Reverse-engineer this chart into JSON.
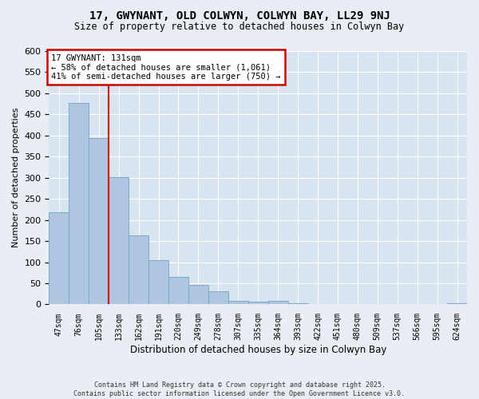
{
  "title_line1": "17, GWYNANT, OLD COLWYN, COLWYN BAY, LL29 9NJ",
  "title_line2": "Size of property relative to detached houses in Colwyn Bay",
  "xlabel": "Distribution of detached houses by size in Colwyn Bay",
  "ylabel": "Number of detached properties",
  "categories": [
    "47sqm",
    "76sqm",
    "105sqm",
    "133sqm",
    "162sqm",
    "191sqm",
    "220sqm",
    "249sqm",
    "278sqm",
    "307sqm",
    "335sqm",
    "364sqm",
    "393sqm",
    "422sqm",
    "451sqm",
    "480sqm",
    "509sqm",
    "537sqm",
    "566sqm",
    "595sqm",
    "624sqm"
  ],
  "values": [
    218,
    478,
    394,
    302,
    163,
    105,
    65,
    47,
    31,
    9,
    6,
    9,
    3,
    1,
    0,
    0,
    1,
    0,
    0,
    0,
    2
  ],
  "bar_color": "#aec6e0",
  "bar_edge_color": "#7aaac8",
  "vline_x_index": 2.5,
  "vline_color": "#cc0000",
  "annotation_text": "17 GWYNANT: 131sqm\n← 58% of detached houses are smaller (1,061)\n41% of semi-detached houses are larger (750) →",
  "annotation_box_facecolor": "#ffffff",
  "annotation_box_edgecolor": "#cc0000",
  "background_color": "#e8eef4",
  "plot_bg_color": "#d8e4f0",
  "grid_color": "#ffffff",
  "footer_line1": "Contains HM Land Registry data © Crown copyright and database right 2025.",
  "footer_line2": "Contains public sector information licensed under the Open Government Licence v3.0.",
  "ylim": [
    0,
    600
  ],
  "yticks": [
    0,
    50,
    100,
    150,
    200,
    250,
    300,
    350,
    400,
    450,
    500,
    550,
    600
  ]
}
